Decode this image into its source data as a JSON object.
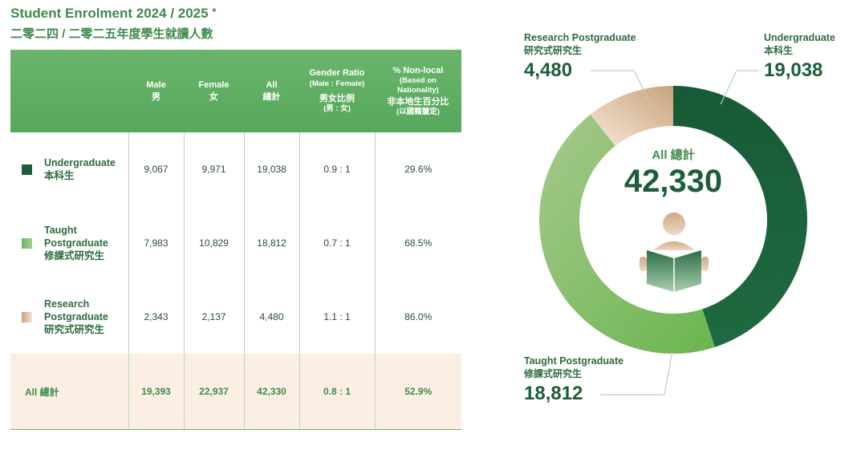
{
  "header": {
    "title": "Student Enrolment 2024 / 2025",
    "title_mark": "*",
    "subtitle": "二零二四 / 二零二五年度學生就讀人數"
  },
  "table": {
    "columns": [
      {
        "en": "Male",
        "zh": "男"
      },
      {
        "en": "Female",
        "zh": "女"
      },
      {
        "en": "All",
        "zh": "總計"
      },
      {
        "en": "Gender Ratio",
        "en2": "(Male : Female)",
        "zh": "男女比例",
        "zh2": "(男 : 女)"
      },
      {
        "en": "% Non-local",
        "en2": "(Based on",
        "en3": "Nationality)",
        "zh": "非本地生百分比",
        "zh2": "(以國籍釐定)"
      }
    ],
    "rows": [
      {
        "label_lines": [
          "Undergraduate",
          "本科生"
        ],
        "swatch": "#1d5e3a",
        "male": "9,067",
        "female": "9,971",
        "all": "19,038",
        "ratio": "0.9 : 1",
        "nonlocal": "29.6%"
      },
      {
        "label_lines": [
          "Taught",
          "Postgraduate",
          "修課式研究生"
        ],
        "swatch": "#8cc26e",
        "male": "7,983",
        "female": "10,829",
        "all": "18,812",
        "ratio": "0.7 : 1",
        "nonlocal": "68.5%"
      },
      {
        "label_lines": [
          "Research",
          "Postgraduate",
          "研究式研究生"
        ],
        "swatch": "#d9b48f",
        "male": "2,343",
        "female": "2,137",
        "all": "4,480",
        "ratio": "1.1 : 1",
        "nonlocal": "86.0%"
      }
    ],
    "total": {
      "label": "All 總計",
      "male": "19,393",
      "female": "22,937",
      "all": "42,330",
      "ratio": "0.8 : 1",
      "nonlocal": "52.9%"
    }
  },
  "chart_data": {
    "type": "pie",
    "style": "donut",
    "center_label": "All 總計",
    "center_value": "42,330",
    "total": 42330,
    "slices": [
      {
        "label_en": "Undergraduate",
        "label_zh": "本科生",
        "value": 19038,
        "value_text": "19,038",
        "color": "#1d5e3a"
      },
      {
        "label_en": "Taught Postgraduate",
        "label_zh": "修課式研究生",
        "value": 18812,
        "value_text": "18,812",
        "color": "#8cc26e"
      },
      {
        "label_en": "Research Postgraduate",
        "label_zh": "研究式研究生",
        "value": 4480,
        "value_text": "4,480",
        "color": "#d9b48f"
      }
    ]
  },
  "colors": {
    "accent": "#3f8a4c",
    "header_green": "#6ab56b",
    "dark_green": "#1d5e3a",
    "total_row_bg": "#fbefe3"
  },
  "icons": {
    "center": "reading-person-icon"
  }
}
